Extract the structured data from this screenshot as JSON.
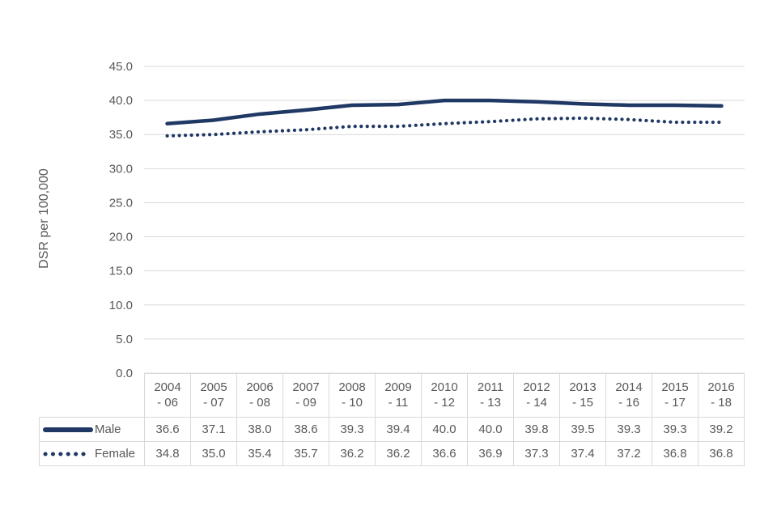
{
  "chart_data": {
    "type": "line",
    "title": "",
    "xlabel": "",
    "ylabel": "DSR per 100,000",
    "ylim": [
      0,
      45
    ],
    "ytick_step": 5,
    "ytick_format_decimals": 1,
    "grid": true,
    "legend_position": "table-left-column",
    "categories": [
      "2004 - 06",
      "2005 - 07",
      "2006 - 08",
      "2007 - 09",
      "2008 - 10",
      "2009 - 11",
      "2010 - 12",
      "2011 - 13",
      "2012 - 14",
      "2013 - 15",
      "2014 - 16",
      "2015 - 17",
      "2016 - 18"
    ],
    "series": [
      {
        "name": "Male",
        "line_style": "solid",
        "color": "#1f3864",
        "values": [
          36.6,
          37.1,
          38.0,
          38.6,
          39.3,
          39.4,
          40.0,
          40.0,
          39.8,
          39.5,
          39.3,
          39.3,
          39.2
        ]
      },
      {
        "name": "Female",
        "line_style": "dotted",
        "color": "#1f3864",
        "values": [
          34.8,
          35.0,
          35.4,
          35.7,
          36.2,
          36.2,
          36.6,
          36.9,
          37.3,
          37.4,
          37.2,
          36.8,
          36.8
        ]
      }
    ]
  },
  "colors": {
    "accent_navy": "#1f3864",
    "text_gray": "#595959",
    "gridline": "#d9d9d9",
    "table_border": "#d9d9d9",
    "background": "#ffffff"
  }
}
